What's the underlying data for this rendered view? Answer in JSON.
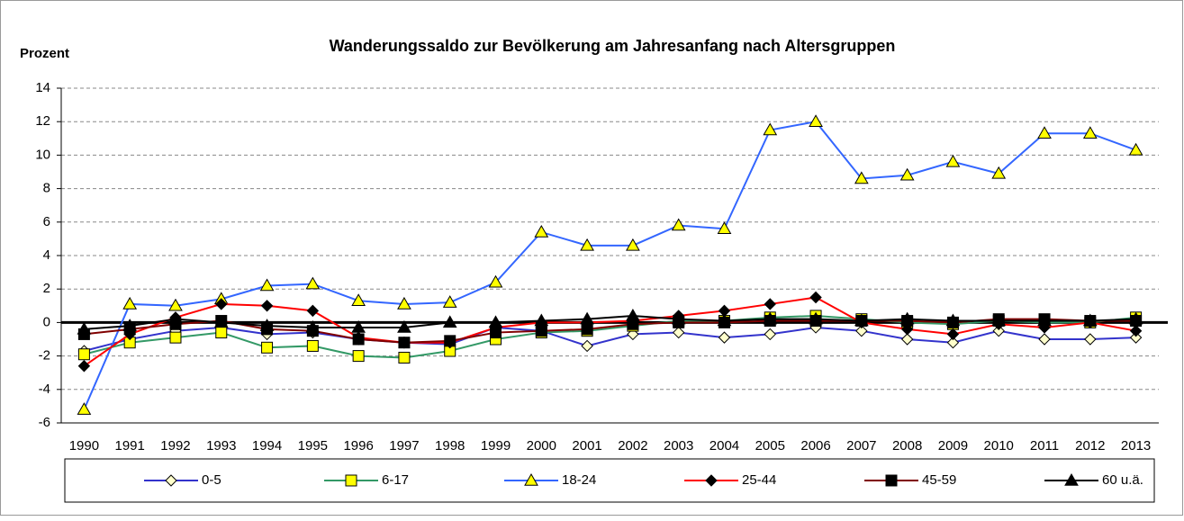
{
  "chart_data": {
    "type": "line",
    "title": "Wanderungssaldo zur Bevölkerung am Jahresanfang nach Altersgruppen",
    "y_label": "Prozent",
    "categories": [
      "1990",
      "1991",
      "1992",
      "1993",
      "1994",
      "1995",
      "1996",
      "1997",
      "1998",
      "1999",
      "2000",
      "2001",
      "2002",
      "2003",
      "2004",
      "2005",
      "2006",
      "2007",
      "2008",
      "2009",
      "2010",
      "2011",
      "2012",
      "2013"
    ],
    "ylim": [
      -6,
      14
    ],
    "yticks": [
      -6,
      -4,
      -2,
      0,
      2,
      4,
      6,
      8,
      10,
      12,
      14
    ],
    "grid": true,
    "legend": "bottom",
    "series": [
      {
        "name": "0-5",
        "color": "#3333cc",
        "marker": "diamond",
        "marker_fill": "#ffffcc",
        "values": [
          -1.7,
          -1.0,
          -0.5,
          -0.3,
          -0.7,
          -0.6,
          -1.0,
          -1.2,
          -1.3,
          -0.3,
          -0.5,
          -1.4,
          -0.7,
          -0.6,
          -0.9,
          -0.7,
          -0.3,
          -0.5,
          -1.0,
          -1.2,
          -0.5,
          -1.0,
          -1.0,
          -0.9
        ]
      },
      {
        "name": "6-17",
        "color": "#339966",
        "marker": "square",
        "marker_fill": "#ffff00",
        "values": [
          -1.9,
          -1.2,
          -0.9,
          -0.6,
          -1.5,
          -1.4,
          -2.0,
          -2.1,
          -1.7,
          -1.0,
          -0.6,
          -0.5,
          -0.2,
          0.1,
          0.1,
          0.3,
          0.4,
          0.2,
          0.0,
          -0.1,
          0.1,
          0.0,
          0.0,
          0.3
        ]
      },
      {
        "name": "18-24",
        "color": "#3366ff",
        "marker": "triangle",
        "marker_fill": "#ffff00",
        "values": [
          -5.2,
          1.1,
          1.0,
          1.4,
          2.2,
          2.3,
          1.3,
          1.1,
          1.2,
          2.4,
          5.4,
          4.6,
          4.6,
          5.8,
          5.6,
          11.5,
          12.0,
          8.6,
          8.8,
          9.6,
          8.9,
          11.3,
          11.3,
          10.3
        ]
      },
      {
        "name": "25-44",
        "color": "#ff0000",
        "marker": "diamond",
        "marker_fill": "#000000",
        "values": [
          -2.6,
          -0.7,
          0.3,
          1.1,
          1.0,
          0.7,
          -0.9,
          -1.2,
          -1.2,
          -0.3,
          0.0,
          0.0,
          0.1,
          0.4,
          0.7,
          1.1,
          1.5,
          0.0,
          -0.4,
          -0.7,
          -0.1,
          -0.3,
          0.0,
          -0.5
        ]
      },
      {
        "name": "45-59",
        "color": "#800000",
        "marker": "square",
        "marker_fill": "#000000",
        "values": [
          -0.7,
          -0.4,
          -0.1,
          0.1,
          -0.4,
          -0.5,
          -1.0,
          -1.2,
          -1.1,
          -0.6,
          -0.5,
          -0.4,
          -0.1,
          0.0,
          0.0,
          0.1,
          0.1,
          0.1,
          0.1,
          0.0,
          0.2,
          0.2,
          0.1,
          0.1
        ]
      },
      {
        "name": "60 u.ä.",
        "color": "#000000",
        "marker": "triangle",
        "marker_fill": "#000000",
        "values": [
          -0.4,
          -0.2,
          0.2,
          0.0,
          -0.2,
          -0.3,
          -0.3,
          -0.3,
          0.0,
          0.0,
          0.1,
          0.2,
          0.4,
          0.2,
          0.1,
          0.2,
          0.2,
          0.1,
          0.2,
          0.1,
          0.1,
          0.1,
          0.1,
          0.2
        ]
      }
    ]
  }
}
